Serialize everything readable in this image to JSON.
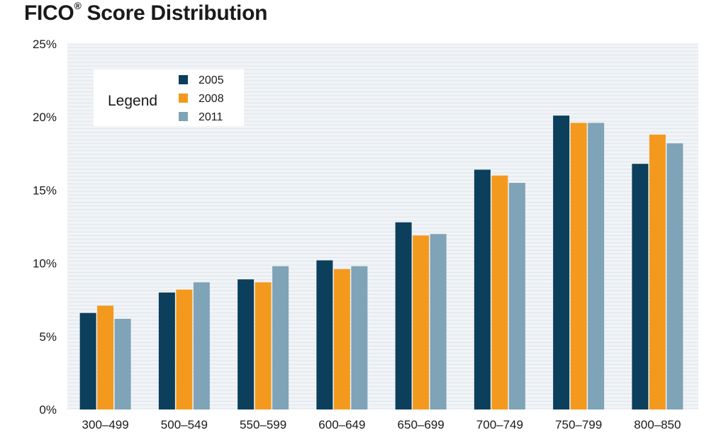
{
  "title": "FICO",
  "title_mark": "®",
  "title_rest": " Score Distribution",
  "legend": {
    "title": "Legend"
  },
  "colors": {
    "2005": "#0b3f5c",
    "2008": "#f39a1e",
    "2011": "#7fa3b7",
    "grid": "#dde4ea",
    "plot_bg": "#f1f4f7"
  },
  "chart_data": {
    "type": "bar",
    "title": "FICO® Score Distribution",
    "categories": [
      "300–499",
      "500–549",
      "550–599",
      "600–649",
      "650–699",
      "700–749",
      "750–799",
      "800–850"
    ],
    "series": [
      {
        "name": "2005",
        "values": [
          6.6,
          8.0,
          8.9,
          10.2,
          12.8,
          16.4,
          20.1,
          16.8
        ]
      },
      {
        "name": "2008",
        "values": [
          7.1,
          8.2,
          8.7,
          9.6,
          11.9,
          16.0,
          19.6,
          18.8
        ]
      },
      {
        "name": "2011",
        "values": [
          6.2,
          8.7,
          9.8,
          9.8,
          12.0,
          15.5,
          19.6,
          18.2
        ]
      }
    ],
    "ylim": [
      0,
      25
    ],
    "yticks": [
      "0%",
      "5%",
      "10%",
      "15%",
      "20%",
      "25%"
    ],
    "xlabel": "",
    "ylabel": "",
    "grid": true,
    "legend_position": "top-left"
  }
}
